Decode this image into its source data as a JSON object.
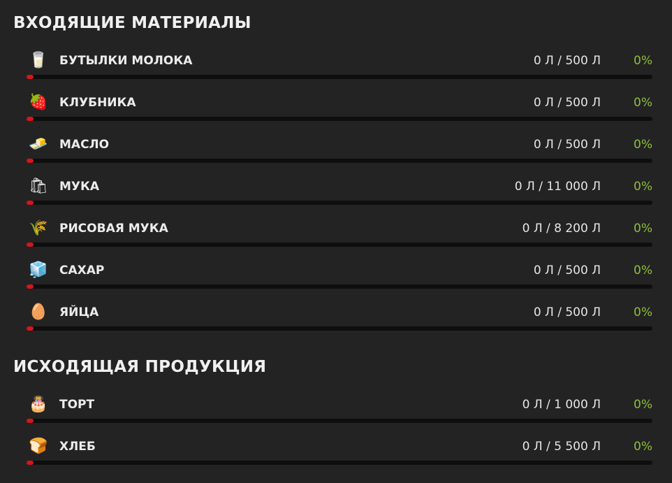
{
  "input_section": {
    "title": "ВХОДЯЩИЕ МАТЕРИАЛЫ",
    "items": [
      {
        "icon": "milk-bottle-icon",
        "glyph": "🥛",
        "label": "БУТЫЛКИ МОЛОКА",
        "amount": "0 Л / 500 Л",
        "percent": "0%",
        "fill": 0
      },
      {
        "icon": "strawberry-icon",
        "glyph": "🍓",
        "label": "КЛУБНИКА",
        "amount": "0 Л / 500 Л",
        "percent": "0%",
        "fill": 0
      },
      {
        "icon": "butter-icon",
        "glyph": "🧈",
        "label": "МАСЛО",
        "amount": "0 Л / 500 Л",
        "percent": "0%",
        "fill": 0
      },
      {
        "icon": "flour-sack-icon",
        "glyph": "🛍",
        "label": "МУКА",
        "amount": "0 Л / 11 000 Л",
        "percent": "0%",
        "fill": 0
      },
      {
        "icon": "rice-flour-sack-icon",
        "glyph": "🌾",
        "label": "РИСОВАЯ МУКА",
        "amount": "0 Л / 8 200 Л",
        "percent": "0%",
        "fill": 0
      },
      {
        "icon": "sugar-cubes-icon",
        "glyph": "🧊",
        "label": "САХАР",
        "amount": "0 Л / 500 Л",
        "percent": "0%",
        "fill": 0
      },
      {
        "icon": "eggs-icon",
        "glyph": "🥚",
        "label": "ЯЙЦА",
        "amount": "0 Л / 500 Л",
        "percent": "0%",
        "fill": 0
      }
    ]
  },
  "output_section": {
    "title": "ИСХОДЯЩАЯ ПРОДУКЦИЯ",
    "items": [
      {
        "icon": "cake-icon",
        "glyph": "🎂",
        "label": "ТОРТ",
        "amount": "0 Л / 1 000 Л",
        "percent": "0%",
        "fill": 0
      },
      {
        "icon": "bread-icon",
        "glyph": "🍞",
        "label": "ХЛЕБ",
        "amount": "0 Л / 5 500 Л",
        "percent": "0%",
        "fill": 0
      }
    ]
  },
  "colors": {
    "background": "#232323",
    "bar_track": "#0e0e0e",
    "bar_fill": "#d8141c",
    "percent_text": "#8fbf3a"
  }
}
